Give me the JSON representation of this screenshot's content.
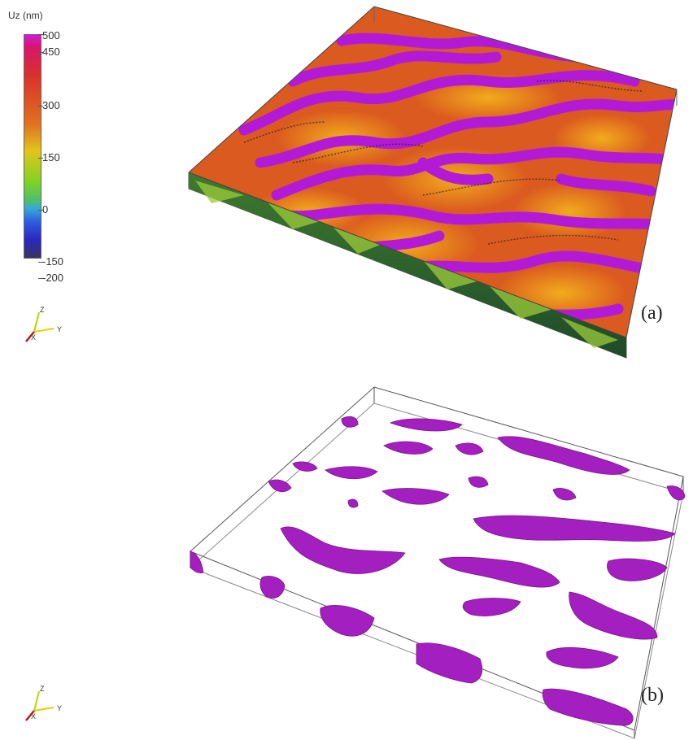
{
  "colorbar": {
    "title": "Uz (nm)",
    "ticks": [
      "500",
      "450",
      "300",
      "150",
      "0",
      "-150",
      "-200"
    ]
  },
  "axes_triad": {
    "z_label": "Z",
    "x_label": "X",
    "y_label": "Y"
  },
  "panels": [
    {
      "label": "(a)"
    },
    {
      "label": "(b)"
    }
  ],
  "colors": {
    "surface_base": "#db5a1f",
    "surface_highlight": "#f0a41d",
    "ridge": "#b31ad8",
    "side_wall": "#2f6a34",
    "isosurface": "#a41fbf"
  }
}
